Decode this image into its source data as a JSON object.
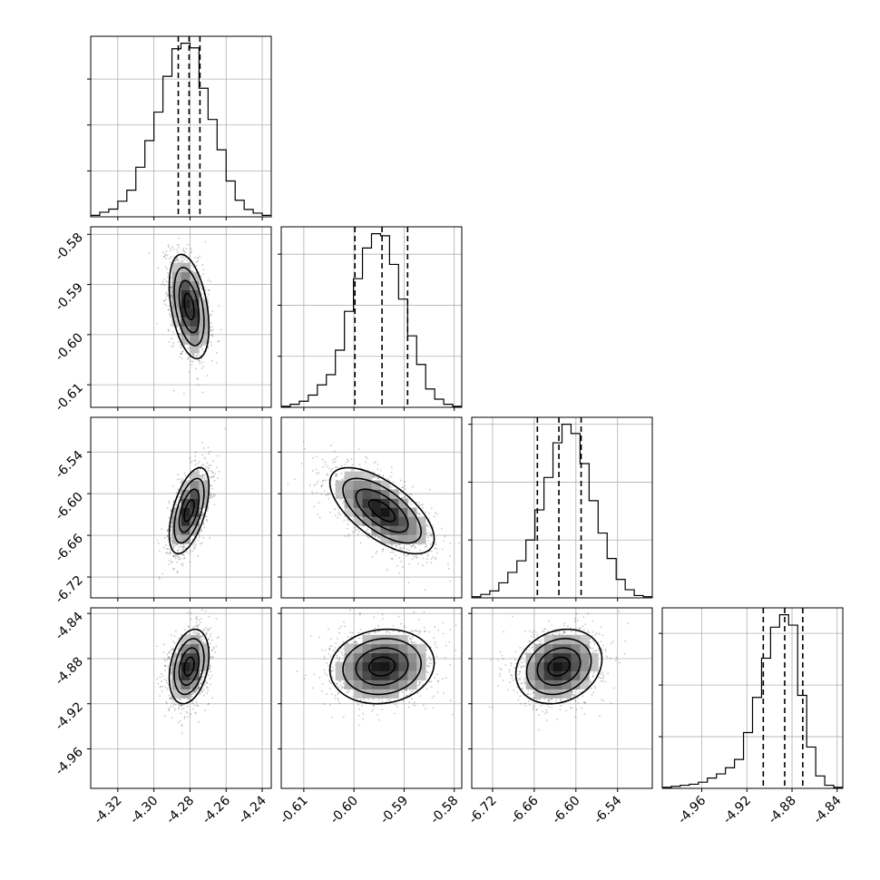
{
  "chart_data": {
    "type": "scatter",
    "subtype": "corner",
    "grid": true,
    "parameters": [
      {
        "range": [
          -4.335,
          -4.235
        ],
        "ticks": [
          "-4.32",
          "-4.30",
          "-4.28",
          "-4.26",
          "-4.24"
        ],
        "tick_values": [
          -4.32,
          -4.3,
          -4.28,
          -4.26,
          -4.24
        ],
        "quantiles": [
          -4.2865,
          -4.2805,
          -4.2745
        ],
        "mean": -4.2805,
        "sd": 0.0055,
        "histogram_counts": [
          0.8,
          2.5,
          4.2,
          8.5,
          14.5,
          27.0,
          41.5,
          57.0,
          76.5,
          91.5,
          94.5,
          92.0,
          70.0,
          53.0,
          36.5,
          19.5,
          9.0,
          4.0,
          2.0,
          0.8
        ]
      },
      {
        "range": [
          -0.6145,
          -0.5785
        ],
        "ticks": [
          "-0.61",
          "-0.60",
          "-0.59",
          "-0.58"
        ],
        "tick_values": [
          -0.61,
          -0.6,
          -0.59,
          -0.58
        ],
        "quantiles": [
          -0.5998,
          -0.5944,
          -0.5893
        ],
        "mean": -0.5944,
        "sd": 0.0052,
        "histogram_counts": [
          0.5,
          1.5,
          3.0,
          6.0,
          11.0,
          16.0,
          28.0,
          47.0,
          63.0,
          78.0,
          85.0,
          84.0,
          70.0,
          53.0,
          35.0,
          21.0,
          9.0,
          4.0,
          1.5,
          0.5
        ]
      },
      {
        "range": [
          -6.75,
          -6.49
        ],
        "ticks": [
          "-6.72",
          "-6.66",
          "-6.60",
          "-6.54"
        ],
        "tick_values": [
          -6.72,
          -6.66,
          -6.6,
          -6.54
        ],
        "quantiles": [
          -6.6555,
          -6.6245,
          -6.5925
        ],
        "mean": -6.6245,
        "sd": 0.031,
        "histogram_counts": [
          0.5,
          1.5,
          3.0,
          6.5,
          11.0,
          16.0,
          25.0,
          38.0,
          52.0,
          67.0,
          75.0,
          71.0,
          58.0,
          42.0,
          28.0,
          17.0,
          8.0,
          3.5,
          1.0,
          0.5
        ]
      },
      {
        "range": [
          -4.995,
          -4.835
        ],
        "ticks": [
          "-4.96",
          "-4.92",
          "-4.88",
          "-4.84"
        ],
        "tick_values": [
          -4.96,
          -4.92,
          -4.88,
          -4.84
        ],
        "quantiles": [
          -4.9055,
          -4.8865,
          -4.8705
        ],
        "mean": -4.887,
        "sd": 0.0165,
        "histogram_counts": [
          0.5,
          1.0,
          1.5,
          2.0,
          3.0,
          5.0,
          7.0,
          10.0,
          14.0,
          27.0,
          44.0,
          63.0,
          78.0,
          84.0,
          79.0,
          45.0,
          20.0,
          6.0,
          1.5,
          0.5
        ]
      }
    ],
    "correlations": {
      "1_0": -0.4,
      "2_0": 0.55,
      "2_1": -0.65,
      "3_0": 0.3,
      "3_1": 0.1,
      "3_2": 0.2
    }
  },
  "colors": {
    "line": "#000000",
    "grid": "#b0b0b0",
    "scatter": "#000000",
    "background": "#ffffff"
  }
}
